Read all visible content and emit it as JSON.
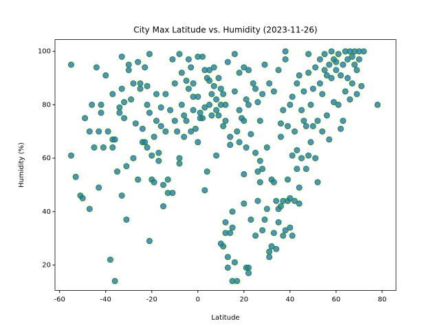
{
  "chart_data": {
    "type": "scatter",
    "title": "City Max Latitude vs. Humidity (2023-11-26)",
    "x_label": "Latitude",
    "y_label": "Humidity (%)",
    "color": "#1f77b4",
    "edgecolor": "#228b22",
    "xlim": [
      -62,
      86
    ],
    "ylim": [
      10.5,
      104.4
    ],
    "xticks": [
      -60,
      -40,
      -20,
      0,
      20,
      40,
      60,
      80
    ],
    "yticks": [
      20,
      40,
      60,
      80,
      100
    ],
    "x": [
      -55,
      -55,
      -53,
      -51,
      -50,
      -49,
      -47,
      -47,
      -46,
      -45,
      -44,
      -43,
      -43,
      -42,
      -42,
      -41,
      -40,
      -39,
      -38,
      -37,
      -37,
      -37,
      -36,
      -36,
      -35,
      -34,
      -34,
      -33,
      -33,
      -33,
      -32,
      -32,
      -31,
      -31,
      -30,
      -30,
      -29,
      -28,
      -28,
      -27,
      -26,
      -26,
      -25,
      -25,
      -24,
      -24,
      -23,
      -23,
      -22,
      -22,
      -22,
      -21,
      -21,
      -21,
      -20,
      -20,
      -19,
      -19,
      -18,
      -18,
      -17,
      -17,
      -16,
      -16,
      -15,
      -15,
      -14,
      -14,
      -13,
      -13,
      -12,
      -11,
      -11,
      -10,
      -10,
      -9,
      -8,
      -8,
      -8,
      -7,
      -7,
      -6,
      -6,
      -5,
      -5,
      -4,
      -4,
      -3,
      -3,
      -2,
      -2,
      -1,
      0,
      0,
      0,
      1,
      2,
      2,
      3,
      3,
      4,
      4,
      5,
      5,
      6,
      6,
      7,
      7,
      8,
      8,
      9,
      9,
      10,
      10,
      11,
      11,
      11,
      12,
      12,
      12,
      13,
      13,
      13,
      14,
      14,
      15,
      15,
      15,
      16,
      16,
      16,
      17,
      17,
      18,
      18,
      19,
      20,
      20,
      20,
      21,
      21,
      21,
      22,
      22,
      22,
      23,
      23,
      24,
      25,
      25,
      25,
      26,
      26,
      27,
      27,
      27,
      28,
      28,
      29,
      29,
      30,
      30,
      31,
      31,
      31,
      32,
      32,
      33,
      33,
      33,
      34,
      34,
      35,
      35,
      35,
      36,
      36,
      36,
      37,
      37,
      37,
      38,
      38,
      38,
      39,
      39,
      39,
      40,
      40,
      40,
      41,
      41,
      41,
      42,
      42,
      43,
      43,
      43,
      44,
      44,
      44,
      45,
      45,
      46,
      46,
      47,
      47,
      48,
      48,
      48,
      49,
      49,
      50,
      50,
      51,
      51,
      52,
      52,
      53,
      53,
      54,
      54,
      55,
      55,
      56,
      56,
      57,
      57,
      58,
      58,
      59,
      59,
      60,
      60,
      61,
      61,
      62,
      62,
      63,
      63,
      64,
      64,
      65,
      65,
      66,
      66,
      67,
      67,
      68,
      68,
      69,
      69,
      70,
      70,
      71,
      72,
      78,
      -2,
      1,
      3,
      5,
      8,
      10,
      12,
      14,
      18,
      20,
      22,
      26,
      28
    ],
    "values": [
      95,
      61,
      53,
      46,
      45,
      75,
      70,
      41,
      80,
      64,
      94,
      70,
      49,
      77,
      80,
      64,
      91,
      70,
      22,
      84,
      64,
      67,
      67,
      14,
      55,
      79,
      77,
      98,
      86,
      46,
      75,
      81,
      57,
      37,
      93,
      95,
      82,
      60,
      88,
      73,
      52,
      96,
      88,
      86,
      71,
      66,
      94,
      66,
      87,
      64,
      80,
      99,
      29,
      77,
      52,
      61,
      51,
      68,
      74,
      84,
      62,
      59,
      79,
      72,
      42,
      50,
      70,
      84,
      52,
      47,
      78,
      97,
      47,
      88,
      74,
      70,
      99,
      60,
      58,
      80,
      92,
      76,
      68,
      89,
      74,
      97,
      86,
      94,
      70,
      88,
      78,
      71,
      98,
      66,
      83,
      77,
      98,
      75,
      48,
      79,
      55,
      90,
      93,
      80,
      84,
      76,
      94,
      87,
      61,
      82,
      90,
      76,
      28,
      86,
      27,
      72,
      84,
      36,
      32,
      80,
      23,
      19,
      96,
      32,
      68,
      14,
      34,
      40,
      99,
      21,
      85,
      14,
      70,
      66,
      92,
      75,
      54,
      43,
      94,
      19,
      64,
      82,
      17,
      19,
      93,
      37,
      69,
      88,
      31,
      62,
      86,
      55,
      44,
      51,
      59,
      74,
      33,
      84,
      95,
      37,
      64,
      41,
      23,
      25,
      88,
      27,
      52,
      32,
      51,
      85,
      26,
      44,
      36,
      41,
      93,
      42,
      73,
      68,
      31,
      44,
      78,
      100,
      33,
      97,
      44,
      72,
      52,
      45,
      34,
      80,
      31,
      61,
      83,
      44,
      70,
      56,
      63,
      88,
      43,
      91,
      49,
      78,
      60,
      74,
      85,
      56,
      72,
      92,
      61,
      99,
      66,
      80,
      86,
      72,
      60,
      94,
      51,
      74,
      97,
      88,
      70,
      84,
      93,
      99,
      76,
      91,
      95,
      67,
      100,
      90,
      81,
      97,
      93,
      96,
      80,
      99,
      71,
      91,
      95,
      74,
      100,
      85,
      97,
      90,
      100,
      82,
      98,
      88,
      100,
      95,
      93,
      84,
      97,
      100,
      87,
      100,
      80,
      83,
      75,
      93,
      89,
      78,
      80,
      74,
      65,
      78,
      74,
      80,
      81,
      56
    ]
  }
}
